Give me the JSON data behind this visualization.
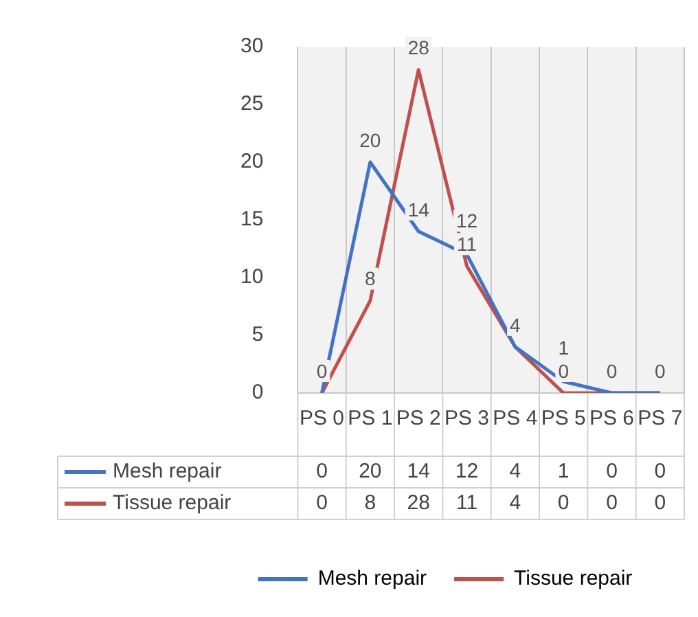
{
  "chart_data": {
    "type": "line",
    "categories": [
      "PS 0",
      "PS 1",
      "PS 2",
      "PS 3",
      "PS 4",
      "PS 5",
      "PS 6",
      "PS 7"
    ],
    "series": [
      {
        "name": "Mesh repair",
        "color": "#4472c4",
        "values": [
          0,
          20,
          14,
          12,
          4,
          1,
          0,
          0
        ]
      },
      {
        "name": "Tissue repair",
        "color": "#c0504d",
        "values": [
          0,
          8,
          28,
          11,
          4,
          0,
          0,
          0
        ]
      }
    ],
    "annotations": [
      {
        "text": "0",
        "x": "PS 0",
        "y": 0
      },
      {
        "text": "20",
        "x": "PS 1",
        "y": 20
      },
      {
        "text": "8",
        "x": "PS 1",
        "y": 8
      },
      {
        "text": "28",
        "x": "PS 2",
        "y": 28
      },
      {
        "text": "14",
        "x": "PS 2",
        "y": 14
      },
      {
        "text": "11",
        "x": "PS 3",
        "y": 11
      },
      {
        "text": "12",
        "x": "PS 3",
        "y": 12
      },
      {
        "text": "4",
        "x": "PS 4",
        "y": 4
      },
      {
        "text": "0",
        "x": "PS 5",
        "y": 0
      },
      {
        "text": "1",
        "x": "PS 5",
        "y": 1
      },
      {
        "text": "0",
        "x": "PS 6",
        "y": 0
      },
      {
        "text": "0",
        "x": "PS 7",
        "y": 0
      }
    ],
    "ylim": [
      0,
      30
    ],
    "yticks": [
      0,
      5,
      10,
      15,
      20,
      25,
      30
    ],
    "grid": "x",
    "legend": "bottom",
    "data_labels": true,
    "marker": "none",
    "line_style": "solid"
  }
}
